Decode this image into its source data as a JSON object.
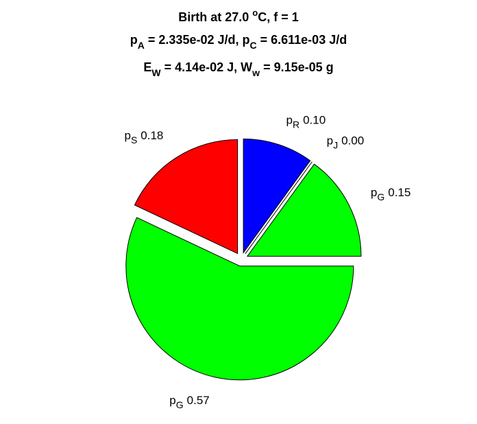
{
  "chart_data": {
    "type": "pie",
    "title": [
      [
        "Birth at 27.0 ",
        "o",
        "C, f = 1"
      ],
      [
        "p",
        "A",
        " = 2.335e-02 J/d, p",
        "C",
        " = 6.611e-03 J/d"
      ],
      [
        "E",
        "W",
        " = 4.14e-02 J, W",
        "w",
        " = 9.15e-05 g"
      ]
    ],
    "labels": [
      {
        "name": "p",
        "sub": "R"
      },
      {
        "name": "p",
        "sub": "J"
      },
      {
        "name": "p",
        "sub": "G"
      },
      {
        "name": "p",
        "sub": "G"
      },
      {
        "name": "p",
        "sub": "S"
      }
    ],
    "values": [
      0.1,
      0.0,
      0.15,
      0.57,
      0.18
    ],
    "value_labels": [
      "0.10",
      "0.00",
      "0.15",
      "0.57",
      "0.18"
    ],
    "colors": [
      "#0000ff",
      "#00ffff",
      "#00ff00",
      "#00ff00",
      "#ff0000"
    ],
    "explode": true
  }
}
